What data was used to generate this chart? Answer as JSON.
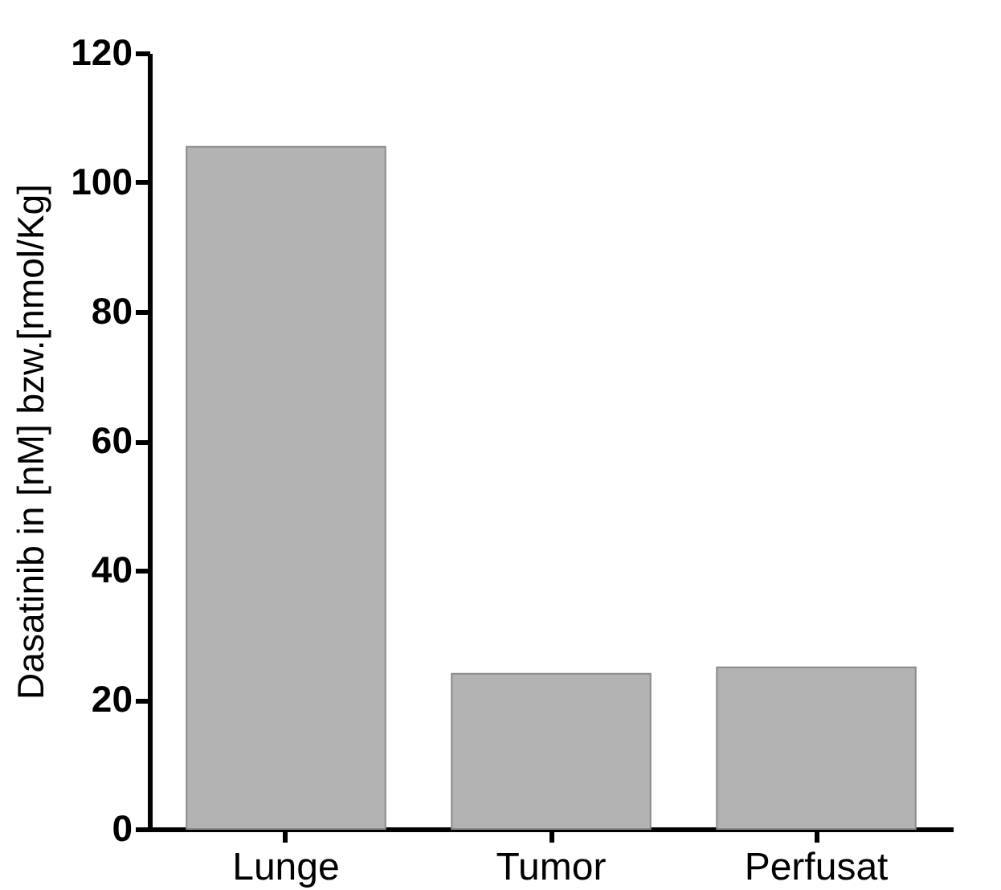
{
  "chart_data": {
    "type": "bar",
    "ylabel": "Dasatinib in [nM] bzw.[nmol/Kg]",
    "categories": [
      "Lunge",
      "Tumor",
      "Perfusat"
    ],
    "values": [
      105.5,
      24,
      25
    ],
    "color": "#b3b3b3",
    "ylim": [
      0,
      120
    ],
    "yticks": [
      0,
      20,
      40,
      60,
      80,
      100,
      120
    ],
    "grid": false
  }
}
